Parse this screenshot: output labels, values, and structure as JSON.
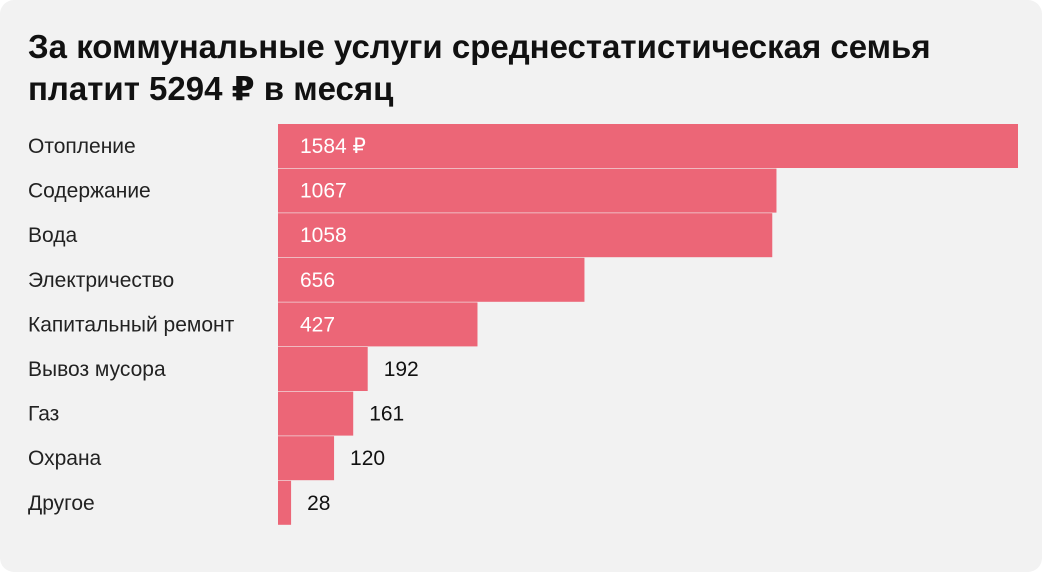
{
  "title": "За коммунальные услуги среднестатистическая семья платит 5294 ₽ в месяц",
  "colors": {
    "bar": "#ec6677",
    "card_background": "#f2f2f2",
    "label_inside": "#ffffff",
    "label_outside": "#111111"
  },
  "chart_data": {
    "type": "bar",
    "orientation": "horizontal",
    "title": "За коммунальные услуги среднестатистическая семья платит 5294 ₽ в месяц",
    "categories": [
      "Отопление",
      "Содержание",
      "Вода",
      "Электричество",
      "Капитальный ремонт",
      "Вывоз мусора",
      "Газ",
      "Охрана",
      "Другое"
    ],
    "values": [
      1584,
      1067,
      1058,
      656,
      427,
      192,
      161,
      120,
      28
    ],
    "value_labels": [
      "1584 ₽",
      "1067",
      "1058",
      "656",
      "427",
      "192",
      "161",
      "120",
      "28"
    ],
    "unit": "₽",
    "xlim": [
      0,
      1584
    ],
    "grid": false,
    "legend": "none"
  }
}
